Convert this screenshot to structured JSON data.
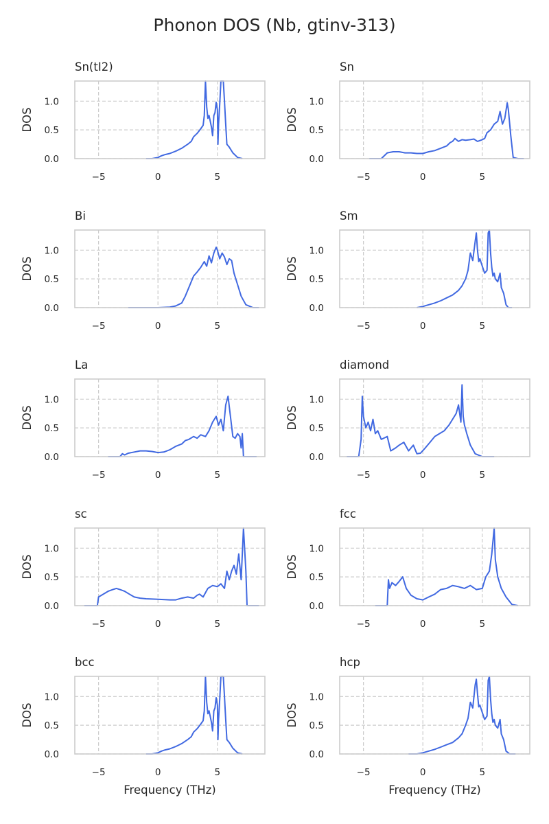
{
  "figure": {
    "title": "Phonon DOS (Nb, gtinv-313)",
    "line_color": "#4169e1"
  },
  "chart_data": [
    {
      "type": "line",
      "title": "Sn(tI2)",
      "ylabel": "DOS",
      "xlabel": "",
      "xlim": [
        -7,
        9
      ],
      "ylim": [
        0,
        1.35
      ],
      "xticks": [
        -5,
        0,
        5
      ],
      "yticks": [
        0.0,
        0.5,
        1.0
      ],
      "grid": true,
      "x": [
        -1,
        -0.5,
        0,
        0.3,
        0.6,
        1,
        1.5,
        2,
        2.5,
        2.8,
        3,
        3.3,
        3.6,
        3.8,
        3.9,
        4.0,
        4.1,
        4.2,
        4.3,
        4.4,
        4.5,
        4.6,
        4.7,
        4.8,
        4.9,
        5.0,
        5.05,
        5.1,
        5.2,
        5.3,
        5.4,
        5.5,
        5.6,
        5.7,
        5.8,
        6.0,
        6.3,
        6.7,
        7.1
      ],
      "y": [
        0,
        0,
        0.02,
        0.05,
        0.07,
        0.09,
        0.13,
        0.18,
        0.25,
        0.3,
        0.38,
        0.44,
        0.52,
        0.58,
        0.75,
        1.35,
        0.9,
        0.7,
        0.75,
        0.65,
        0.55,
        0.4,
        0.75,
        0.8,
        0.98,
        0.85,
        0.25,
        0.6,
        0.95,
        1.35,
        1.35,
        1.35,
        1.0,
        0.6,
        0.25,
        0.2,
        0.1,
        0.02,
        0.0
      ]
    },
    {
      "type": "line",
      "title": "Sn",
      "ylabel": "DOS",
      "xlabel": "",
      "xlim": [
        -7,
        9
      ],
      "ylim": [
        0,
        1.35
      ],
      "xticks": [
        -5,
        0,
        5
      ],
      "yticks": [
        0.0,
        0.5,
        1.0
      ],
      "grid": true,
      "x": [
        -4.5,
        -3.5,
        -3.2,
        -3,
        -2.5,
        -2,
        -1.5,
        -1,
        -0.5,
        0,
        0.5,
        1,
        1.5,
        2,
        2.3,
        2.5,
        2.7,
        3,
        3.3,
        3.6,
        4,
        4.3,
        4.6,
        5,
        5.2,
        5.4,
        5.7,
        6,
        6.3,
        6.5,
        6.7,
        6.9,
        7.1,
        7.2,
        7.4,
        7.6,
        8,
        8.5
      ],
      "y": [
        0,
        0,
        0.06,
        0.1,
        0.12,
        0.12,
        0.1,
        0.1,
        0.09,
        0.09,
        0.12,
        0.14,
        0.18,
        0.22,
        0.28,
        0.3,
        0.35,
        0.3,
        0.33,
        0.32,
        0.33,
        0.34,
        0.3,
        0.33,
        0.35,
        0.45,
        0.5,
        0.6,
        0.65,
        0.82,
        0.6,
        0.7,
        0.97,
        0.85,
        0.4,
        0.02,
        0.0,
        0.0
      ]
    },
    {
      "type": "line",
      "title": "Bi",
      "ylabel": "DOS",
      "xlabel": "",
      "xlim": [
        -7,
        9
      ],
      "ylim": [
        0,
        1.35
      ],
      "xticks": [
        -5,
        0,
        5
      ],
      "yticks": [
        0.0,
        0.5,
        1.0
      ],
      "grid": true,
      "x": [
        -2.5,
        -1,
        0,
        1,
        1.5,
        2,
        2.3,
        2.6,
        3,
        3.3,
        3.6,
        3.9,
        4.1,
        4.3,
        4.5,
        4.7,
        4.9,
        5.0,
        5.2,
        5.4,
        5.6,
        5.8,
        6.0,
        6.2,
        6.4,
        6.7,
        7,
        7.4,
        8,
        8.5
      ],
      "y": [
        0,
        0,
        0,
        0.01,
        0.03,
        0.08,
        0.2,
        0.35,
        0.55,
        0.62,
        0.7,
        0.8,
        0.72,
        0.9,
        0.78,
        0.95,
        1.05,
        1.0,
        0.85,
        0.95,
        0.88,
        0.75,
        0.85,
        0.82,
        0.6,
        0.4,
        0.2,
        0.05,
        0.0,
        0.0
      ]
    },
    {
      "type": "line",
      "title": "Sm",
      "ylabel": "DOS",
      "xlabel": "",
      "xlim": [
        -7,
        9
      ],
      "ylim": [
        0,
        1.35
      ],
      "xticks": [
        -5,
        0,
        5
      ],
      "yticks": [
        0.0,
        0.5,
        1.0
      ],
      "grid": true,
      "x": [
        -0.5,
        0,
        0.5,
        1,
        1.5,
        2,
        2.5,
        3,
        3.3,
        3.6,
        3.8,
        4.0,
        4.2,
        4.4,
        4.5,
        4.6,
        4.7,
        4.8,
        5.0,
        5.2,
        5.4,
        5.5,
        5.6,
        5.7,
        5.8,
        5.9,
        6.0,
        6.1,
        6.3,
        6.5,
        6.6,
        6.8,
        7,
        7.2,
        7.5
      ],
      "y": [
        0,
        0.02,
        0.05,
        0.08,
        0.12,
        0.17,
        0.22,
        0.3,
        0.38,
        0.5,
        0.65,
        0.95,
        0.82,
        1.15,
        1.3,
        1.0,
        0.8,
        0.85,
        0.72,
        0.6,
        0.65,
        1.3,
        1.35,
        0.95,
        0.7,
        0.55,
        0.6,
        0.5,
        0.45,
        0.6,
        0.35,
        0.25,
        0.05,
        0.0,
        0.0
      ]
    },
    {
      "type": "line",
      "title": "La",
      "ylabel": "DOS",
      "xlabel": "",
      "xlim": [
        -7,
        9
      ],
      "ylim": [
        0,
        1.35
      ],
      "xticks": [
        -5,
        0,
        5
      ],
      "yticks": [
        0.0,
        0.5,
        1.0
      ],
      "grid": true,
      "x": [
        -4.2,
        -3.2,
        -3.0,
        -2.8,
        -2.5,
        -2,
        -1.5,
        -1,
        -0.5,
        0,
        0.5,
        1,
        1.5,
        2,
        2.3,
        2.6,
        3,
        3.3,
        3.6,
        4,
        4.3,
        4.6,
        4.9,
        5.1,
        5.3,
        5.5,
        5.7,
        5.9,
        6.1,
        6.3,
        6.5,
        6.7,
        6.9,
        7.0,
        7.1,
        7.2,
        7.5,
        8.3
      ],
      "y": [
        0,
        0,
        0.05,
        0.03,
        0.06,
        0.08,
        0.1,
        0.1,
        0.09,
        0.07,
        0.08,
        0.12,
        0.18,
        0.22,
        0.28,
        0.3,
        0.35,
        0.32,
        0.38,
        0.35,
        0.45,
        0.6,
        0.7,
        0.55,
        0.65,
        0.45,
        0.9,
        1.05,
        0.7,
        0.35,
        0.32,
        0.4,
        0.35,
        0.15,
        0.4,
        0.0,
        0.0,
        0.0
      ]
    },
    {
      "type": "line",
      "title": "diamond",
      "ylabel": "DOS",
      "xlabel": "",
      "xlim": [
        -7,
        9
      ],
      "ylim": [
        0,
        1.35
      ],
      "xticks": [
        -5,
        0,
        5
      ],
      "yticks": [
        0.0,
        0.5,
        1.0
      ],
      "grid": true,
      "x": [
        -6.4,
        -5.4,
        -5.2,
        -5.1,
        -5.0,
        -4.8,
        -4.6,
        -4.4,
        -4.2,
        -4.0,
        -3.8,
        -3.5,
        -3.0,
        -2.7,
        -2.3,
        -2.0,
        -1.6,
        -1.2,
        -0.8,
        -0.5,
        -0.2,
        0.2,
        0.6,
        1,
        1.4,
        1.8,
        2.2,
        2.5,
        2.8,
        3.0,
        3.2,
        3.3,
        3.4,
        3.5,
        3.7,
        4,
        4.4,
        5,
        6
      ],
      "y": [
        0,
        0,
        0.3,
        1.05,
        0.7,
        0.5,
        0.6,
        0.45,
        0.65,
        0.4,
        0.45,
        0.3,
        0.35,
        0.1,
        0.15,
        0.2,
        0.25,
        0.1,
        0.2,
        0.05,
        0.06,
        0.15,
        0.25,
        0.35,
        0.4,
        0.45,
        0.55,
        0.65,
        0.75,
        0.9,
        0.6,
        1.25,
        0.7,
        0.55,
        0.4,
        0.2,
        0.05,
        0.0,
        0.0
      ]
    },
    {
      "type": "line",
      "title": "sc",
      "ylabel": "DOS",
      "xlabel": "",
      "xlim": [
        -7,
        9
      ],
      "ylim": [
        0,
        1.35
      ],
      "xticks": [
        -5,
        0,
        5
      ],
      "yticks": [
        0.0,
        0.5,
        1.0
      ],
      "grid": true,
      "x": [
        -6.2,
        -5.1,
        -5.0,
        -4.6,
        -4.2,
        -3.8,
        -3.5,
        -3.2,
        -2.8,
        -2.4,
        -2,
        -1.5,
        -1,
        0,
        1,
        1.5,
        2,
        2.5,
        3,
        3.3,
        3.5,
        3.8,
        4.2,
        4.6,
        5,
        5.3,
        5.6,
        5.8,
        6.0,
        6.2,
        6.4,
        6.6,
        6.8,
        7.0,
        7.2,
        7.4,
        7.5,
        8.5
      ],
      "y": [
        0,
        0,
        0.15,
        0.2,
        0.25,
        0.28,
        0.3,
        0.28,
        0.25,
        0.2,
        0.15,
        0.13,
        0.12,
        0.11,
        0.1,
        0.1,
        0.13,
        0.15,
        0.13,
        0.18,
        0.2,
        0.15,
        0.3,
        0.35,
        0.33,
        0.38,
        0.3,
        0.6,
        0.45,
        0.6,
        0.7,
        0.55,
        0.9,
        0.45,
        1.35,
        0.6,
        0.0,
        0.0
      ]
    },
    {
      "type": "line",
      "title": "fcc",
      "ylabel": "DOS",
      "xlabel": "",
      "xlim": [
        -7,
        9
      ],
      "ylim": [
        0,
        1.35
      ],
      "xticks": [
        -5,
        0,
        5
      ],
      "yticks": [
        0.0,
        0.5,
        1.0
      ],
      "grid": true,
      "x": [
        -4,
        -3.0,
        -2.9,
        -2.8,
        -2.6,
        -2.3,
        -2.0,
        -1.7,
        -1.4,
        -1.0,
        -0.5,
        0,
        0.5,
        1,
        1.5,
        2,
        2.5,
        3,
        3.5,
        4,
        4.5,
        5,
        5.3,
        5.6,
        5.8,
        6.0,
        6.1,
        6.3,
        6.6,
        7,
        7.5,
        8
      ],
      "y": [
        0,
        0,
        0.45,
        0.3,
        0.4,
        0.35,
        0.42,
        0.5,
        0.3,
        0.18,
        0.12,
        0.1,
        0.15,
        0.2,
        0.28,
        0.3,
        0.35,
        0.33,
        0.3,
        0.35,
        0.28,
        0.3,
        0.5,
        0.6,
        0.9,
        1.35,
        0.8,
        0.5,
        0.3,
        0.15,
        0.02,
        0.0
      ]
    },
    {
      "type": "line",
      "title": "bcc",
      "ylabel": "DOS",
      "xlabel": "Frequency (THz)",
      "xlim": [
        -7,
        9
      ],
      "ylim": [
        0,
        1.35
      ],
      "xticks": [
        -5,
        0,
        5
      ],
      "yticks": [
        0.0,
        0.5,
        1.0
      ],
      "grid": true,
      "x": [
        -1,
        -0.5,
        0,
        0.3,
        0.6,
        1,
        1.5,
        2,
        2.5,
        2.8,
        3,
        3.3,
        3.6,
        3.8,
        3.9,
        4.0,
        4.1,
        4.2,
        4.3,
        4.4,
        4.5,
        4.6,
        4.7,
        4.8,
        4.9,
        5.0,
        5.05,
        5.1,
        5.2,
        5.3,
        5.4,
        5.5,
        5.6,
        5.7,
        5.8,
        6.0,
        6.3,
        6.7,
        7.1
      ],
      "y": [
        0,
        0,
        0.02,
        0.05,
        0.07,
        0.09,
        0.13,
        0.18,
        0.25,
        0.3,
        0.38,
        0.44,
        0.52,
        0.58,
        0.75,
        1.35,
        0.9,
        0.7,
        0.75,
        0.65,
        0.55,
        0.4,
        0.75,
        0.8,
        0.98,
        0.85,
        0.25,
        0.6,
        0.95,
        1.35,
        1.35,
        1.35,
        1.0,
        0.6,
        0.25,
        0.2,
        0.1,
        0.02,
        0.0
      ]
    },
    {
      "type": "line",
      "title": "hcp",
      "ylabel": "DOS",
      "xlabel": "Frequency (THz)",
      "xlim": [
        -7,
        9
      ],
      "ylim": [
        0,
        1.35
      ],
      "xticks": [
        -5,
        0,
        5
      ],
      "yticks": [
        0.0,
        0.5,
        1.0
      ],
      "grid": true,
      "x": [
        -1.2,
        -0.5,
        0,
        0.5,
        1,
        1.5,
        2,
        2.5,
        3,
        3.3,
        3.6,
        3.8,
        4.0,
        4.2,
        4.4,
        4.5,
        4.6,
        4.7,
        4.8,
        5.0,
        5.2,
        5.4,
        5.5,
        5.6,
        5.7,
        5.8,
        5.9,
        6.0,
        6.1,
        6.3,
        6.5,
        6.6,
        6.8,
        7,
        7.3,
        7.8
      ],
      "y": [
        0,
        0,
        0.02,
        0.05,
        0.08,
        0.12,
        0.16,
        0.2,
        0.28,
        0.35,
        0.5,
        0.62,
        0.9,
        0.8,
        1.2,
        1.3,
        1.05,
        0.82,
        0.85,
        0.72,
        0.6,
        0.66,
        1.28,
        1.35,
        0.95,
        0.7,
        0.55,
        0.6,
        0.5,
        0.45,
        0.6,
        0.35,
        0.25,
        0.05,
        0.0,
        0.0
      ]
    }
  ]
}
